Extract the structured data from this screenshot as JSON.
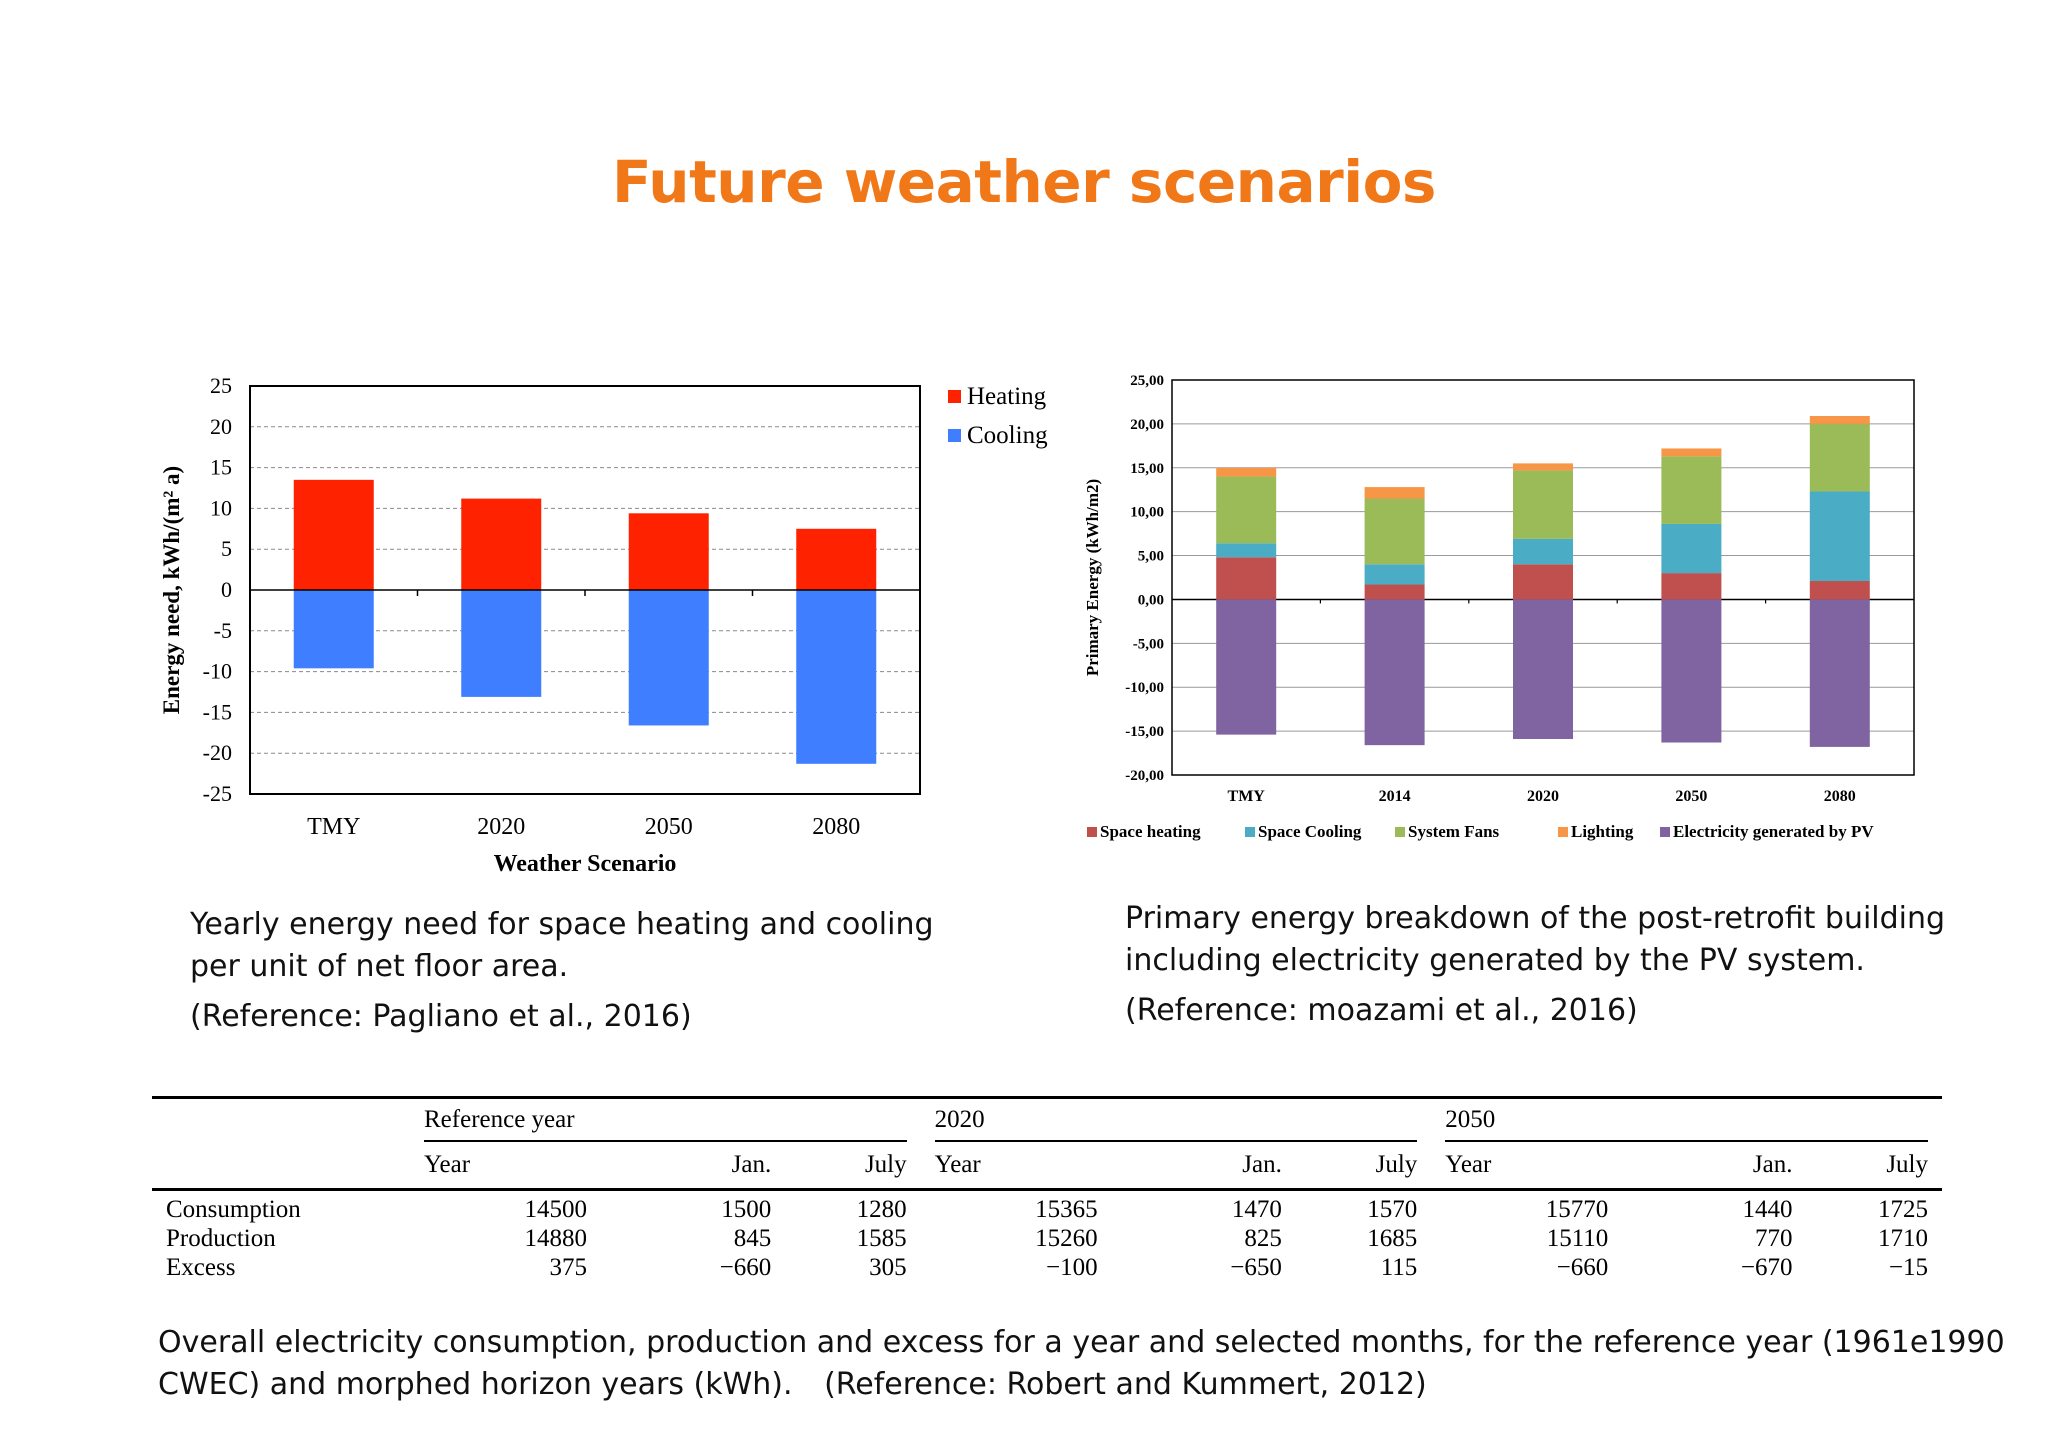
{
  "page": {
    "title": "Future weather scenarios"
  },
  "chart_data": [
    {
      "type": "bar",
      "stacked": false,
      "categories": [
        "TMY",
        "2020",
        "2050",
        "2080"
      ],
      "series": [
        {
          "name": "Heating",
          "color": "#ff2200",
          "values": [
            13.5,
            11.2,
            9.4,
            7.5
          ]
        },
        {
          "name": "Cooling",
          "color": "#3f7fff",
          "values": [
            -9.6,
            -13.1,
            -16.6,
            -21.3
          ]
        }
      ],
      "xlabel": "Weather Scenario",
      "ylabel": "Energy need, kWh/(m² a)",
      "ylim": [
        -25,
        25
      ],
      "yticks": [
        "25",
        "20",
        "15",
        "10",
        "5",
        "0",
        "-5",
        "-10",
        "-15",
        "-20",
        "-25"
      ],
      "grid": true,
      "legend": "right"
    },
    {
      "type": "bar",
      "stacked": true,
      "categories": [
        "TMY",
        "2014",
        "2020",
        "2050",
        "2080"
      ],
      "series": [
        {
          "name": "Space heating",
          "color": "#c0504d",
          "values": [
            4.8,
            1.7,
            4.0,
            3.0,
            2.1
          ]
        },
        {
          "name": "Space Cooling",
          "color": "#4bacc6",
          "values": [
            1.6,
            2.3,
            2.9,
            5.6,
            10.2
          ]
        },
        {
          "name": "System Fans",
          "color": "#9bbb59",
          "values": [
            7.6,
            7.5,
            7.8,
            7.7,
            7.7
          ]
        },
        {
          "name": "Lighting",
          "color": "#f79646",
          "values": [
            1.0,
            1.3,
            0.8,
            0.9,
            0.9
          ]
        },
        {
          "name": "Electricity generated by PV",
          "color": "#8064a2",
          "values": [
            -15.4,
            -16.6,
            -15.9,
            -16.3,
            -16.8
          ]
        }
      ],
      "ylabel": "Primary Energy (kWh/m2)",
      "ylim": [
        -20,
        25
      ],
      "yticks": [
        "25,00",
        "20,00",
        "15,00",
        "10,00",
        "5,00",
        "0,00",
        "-5,00",
        "-10,00",
        "-15,00",
        "-20,00"
      ],
      "grid": true,
      "legend": "bottom"
    },
    {
      "type": "table",
      "groups": [
        "Reference year",
        "2020",
        "2050"
      ],
      "columns": [
        "Year",
        "Jan.",
        "July",
        "Year",
        "Jan.",
        "July",
        "Year",
        "Jan.",
        "July"
      ],
      "rows": [
        {
          "label": "Consumption",
          "values": [
            "14500",
            "1500",
            "1280",
            "15365",
            "1470",
            "1570",
            "15770",
            "1440",
            "1725"
          ]
        },
        {
          "label": "Production",
          "values": [
            "14880",
            "845",
            "1585",
            "15260",
            "825",
            "1685",
            "15110",
            "770",
            "1710"
          ]
        },
        {
          "label": "Excess",
          "values": [
            "375",
            "−660",
            "305",
            "−100",
            "−650",
            "115",
            "−660",
            "−670",
            "−15"
          ]
        }
      ]
    }
  ],
  "captions": {
    "left": {
      "line1": "Yearly energy need for space heating and cooling",
      "line2": "per unit of net floor area.",
      "reference": "(Reference:  Pagliano  et al., 2016)"
    },
    "right": {
      "line1": "Primary energy breakdown of the post-retrofit building",
      "line2": "including  electricity generated by the PV system.",
      "reference": "(Reference:  moazami et al., 2016)"
    },
    "bottom": {
      "line1": "Overall electricity consumption,  production  and excess for a year and selected  months,  for the reference year (1961e1990",
      "line2": "CWEC) and morphed  horizon years (kWh).",
      "reference": "(Reference:  Robert and Kummert,  2012)"
    }
  }
}
